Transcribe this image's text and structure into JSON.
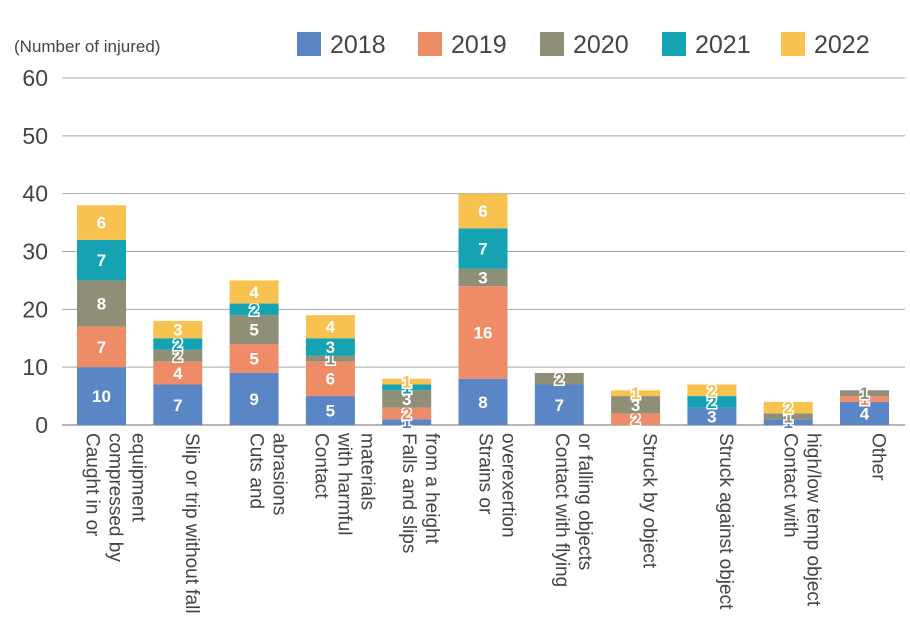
{
  "chart_data": {
    "type": "bar",
    "stacked": true,
    "ylabel": "(Number of injured)",
    "ylim": [
      0,
      60
    ],
    "yticks": [
      0,
      10,
      20,
      30,
      40,
      50,
      60
    ],
    "grid": true,
    "legend_position": "top-right",
    "categories": [
      "Caught in or compressed by equipment",
      "Slip or trip without fall",
      "Cuts and abrasions",
      "Contact with harmful materials",
      "Falls and slips from a height",
      "Strains or overexertion",
      "Contact with flying or falling objects",
      "Struck by object",
      "Struck against object",
      "Contact with high/low temp object",
      "Other"
    ],
    "category_lines": [
      [
        "Caught in or",
        "compressed by",
        "equipment"
      ],
      [
        "Slip or trip without fall"
      ],
      [
        "Cuts and",
        "abrasions"
      ],
      [
        "Contact",
        "with harmful",
        "materials"
      ],
      [
        "Falls and slips",
        "from a height"
      ],
      [
        "Strains or",
        "overexertion"
      ],
      [
        "Contact with flying",
        "or falling objects"
      ],
      [
        "Struck by object"
      ],
      [
        "Struck against object"
      ],
      [
        "Contact with",
        "high/low temp object"
      ],
      [
        "Other"
      ]
    ],
    "series": [
      {
        "name": "2018",
        "color": "#5b86c5",
        "values": [
          10,
          7,
          9,
          5,
          1,
          8,
          7,
          0,
          3,
          1,
          4
        ]
      },
      {
        "name": "2019",
        "color": "#ee8c67",
        "values": [
          7,
          4,
          5,
          6,
          2,
          16,
          0,
          2,
          0,
          0,
          1
        ]
      },
      {
        "name": "2020",
        "color": "#8f8f77",
        "values": [
          8,
          2,
          5,
          1,
          3,
          3,
          2,
          3,
          0,
          1,
          1
        ]
      },
      {
        "name": "2021",
        "color": "#15a3b3",
        "values": [
          7,
          2,
          2,
          3,
          1,
          7,
          0,
          0,
          2,
          0,
          0
        ]
      },
      {
        "name": "2022",
        "color": "#f8c250",
        "values": [
          6,
          3,
          4,
          4,
          1,
          6,
          0,
          1,
          2,
          2,
          0
        ]
      }
    ]
  }
}
